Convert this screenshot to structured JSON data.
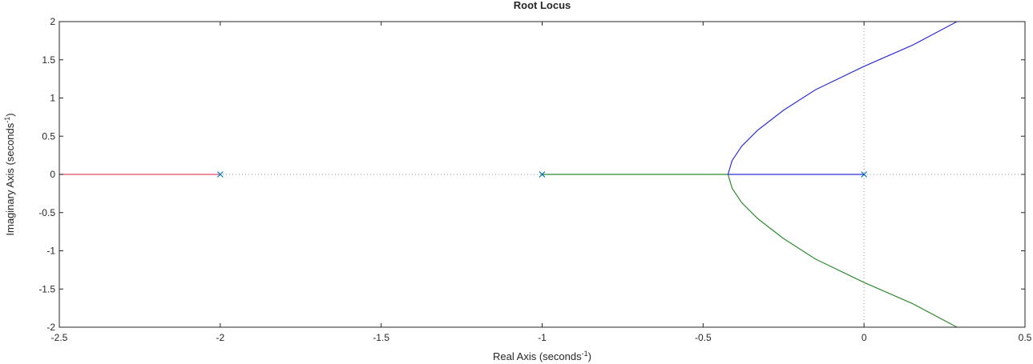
{
  "chart_data": {
    "type": "line",
    "title": "Root Locus",
    "xlabel": {
      "text": "Real Axis (seconds",
      "superscript": "-1",
      "close": ")"
    },
    "ylabel": {
      "text": "Imaginary Axis (seconds",
      "superscript": "-1",
      "close": ")"
    },
    "xlim": [
      -2.5,
      0.5
    ],
    "ylim": [
      -2,
      2
    ],
    "xticks": [
      -2.5,
      -2,
      -1.5,
      -1,
      -0.5,
      0,
      0.5
    ],
    "xtick_labels": [
      "-2.5",
      "-2",
      "-1.5",
      "-1",
      "-0.5",
      "0",
      "0.5"
    ],
    "yticks": [
      -2,
      -1.5,
      -1,
      -0.5,
      0,
      0.5,
      1,
      1.5,
      2
    ],
    "ytick_labels": [
      "-2",
      "-1.5",
      "-1",
      "-0.5",
      "0",
      "0.5",
      "1",
      "1.5",
      "2"
    ],
    "grid": false,
    "poles": [
      {
        "re": -2,
        "im": 0
      },
      {
        "re": -1,
        "im": 0
      },
      {
        "re": 0,
        "im": 0
      }
    ],
    "breakaway_point": {
      "re": -0.4226,
      "im": 0
    },
    "series": [
      {
        "name": "branch-red",
        "color": "#e8495f",
        "points": [
          [
            -2,
            0
          ],
          [
            -2.5,
            0
          ]
        ]
      },
      {
        "name": "branch-green-real",
        "color": "#2e8b2e",
        "points": [
          [
            -1,
            0
          ],
          [
            -0.4226,
            0
          ]
        ]
      },
      {
        "name": "branch-blue-real",
        "color": "#2f2fd6",
        "points": [
          [
            0,
            0
          ],
          [
            -0.4226,
            0
          ]
        ]
      },
      {
        "name": "branch-blue-asymptote",
        "color": "#2f2fd6",
        "points": [
          [
            -0.4226,
            0
          ],
          [
            -0.41,
            0.18
          ],
          [
            -0.38,
            0.37
          ],
          [
            -0.33,
            0.58
          ],
          [
            -0.25,
            0.84
          ],
          [
            -0.15,
            1.11
          ],
          [
            0,
            1.414
          ],
          [
            0.15,
            1.69
          ],
          [
            0.2887,
            2
          ]
        ]
      },
      {
        "name": "branch-green-asymptote",
        "color": "#2e8b2e",
        "points": [
          [
            -0.4226,
            0
          ],
          [
            -0.41,
            -0.18
          ],
          [
            -0.38,
            -0.37
          ],
          [
            -0.33,
            -0.58
          ],
          [
            -0.25,
            -0.84
          ],
          [
            -0.15,
            -1.11
          ],
          [
            0,
            -1.414
          ],
          [
            0.15,
            -1.69
          ],
          [
            0.2887,
            -2
          ]
        ]
      }
    ],
    "colors": {
      "axes": "#262626",
      "pole_marker": "#0072bd",
      "reference_lines": "#999999",
      "tick_label": "#262626"
    }
  }
}
